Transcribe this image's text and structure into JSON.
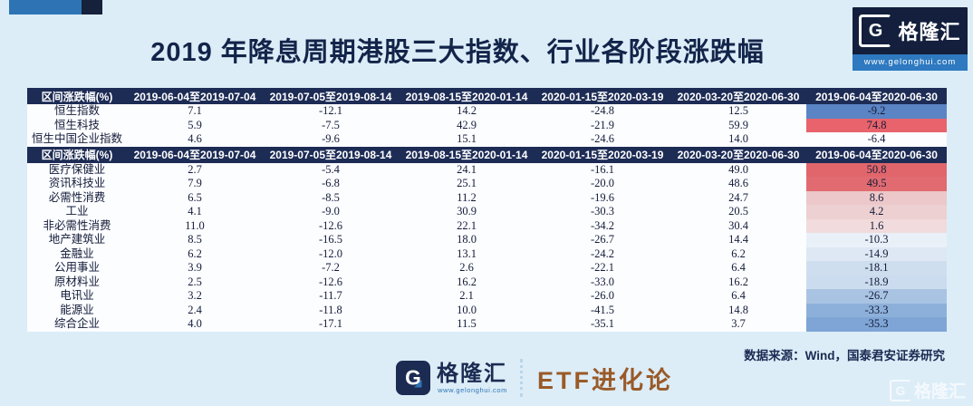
{
  "page": {
    "bg": "#dcedf8",
    "accent_blue": "#2e74b5",
    "accent_navy": "#16213c",
    "table_header_bg": "#1d2c55"
  },
  "title": "2019 年降息周期港股三大指数、行业各阶段涨跌幅",
  "top_logo": {
    "glyph": "G",
    "brand": "格隆汇",
    "url": "www.gelonghui.com"
  },
  "chart_data": {
    "type": "table",
    "title": "2019 年降息周期港股三大指数、行业各阶段涨跌幅",
    "columns": [
      "区间涨跌幅(%)",
      "2019-06-04至2019-07-04",
      "2019-07-05至2019-08-14",
      "2019-08-15至2020-01-14",
      "2020-01-15至2020-03-19",
      "2020-03-20至2020-06-30",
      "2019-06-04至2020-06-30"
    ],
    "tables": [
      {
        "name": "港股三大指数",
        "rows": [
          {
            "label": "恒生指数",
            "values": [
              "7.1",
              "-12.1",
              "14.2",
              "-24.8",
              "12.5",
              "-9.2"
            ],
            "last_bg": "#5b84c4"
          },
          {
            "label": "恒生科技",
            "values": [
              "5.9",
              "-7.5",
              "42.9",
              "-21.9",
              "59.9",
              "74.8"
            ],
            "last_bg": "#e8636c"
          },
          {
            "label": "恒生中国企业指数",
            "values": [
              "4.6",
              "-9.6",
              "15.1",
              "-24.6",
              "14.0",
              "-6.4"
            ],
            "last_bg": ""
          }
        ]
      },
      {
        "name": "行业",
        "rows": [
          {
            "label": "医疗保健业",
            "values": [
              "2.7",
              "-5.4",
              "24.1",
              "-16.1",
              "49.0",
              "50.8"
            ],
            "last_bg": "#e0666c"
          },
          {
            "label": "资讯科技业",
            "values": [
              "7.9",
              "-6.8",
              "25.1",
              "-20.0",
              "48.6",
              "49.5"
            ],
            "last_bg": "#e16b70"
          },
          {
            "label": "必需性消费",
            "values": [
              "6.5",
              "-8.5",
              "11.2",
              "-19.6",
              "24.7",
              "8.6"
            ],
            "last_bg": "#ecc8ca"
          },
          {
            "label": "工业",
            "values": [
              "4.1",
              "-9.0",
              "30.9",
              "-30.3",
              "20.5",
              "4.2"
            ],
            "last_bg": "#edd0d1"
          },
          {
            "label": "非必需性消费",
            "values": [
              "11.0",
              "-12.6",
              "22.1",
              "-34.2",
              "30.4",
              "1.6"
            ],
            "last_bg": "#f1dbdc"
          },
          {
            "label": "地产建筑业",
            "values": [
              "8.5",
              "-16.5",
              "18.0",
              "-26.7",
              "14.4",
              "-10.3"
            ],
            "last_bg": "#e9f0f8"
          },
          {
            "label": "金融业",
            "values": [
              "6.2",
              "-12.0",
              "13.1",
              "-24.2",
              "6.2",
              "-14.9"
            ],
            "last_bg": "#dde8f4"
          },
          {
            "label": "公用事业",
            "values": [
              "3.9",
              "-7.2",
              "2.6",
              "-22.1",
              "6.4",
              "-18.1"
            ],
            "last_bg": "#cedeef"
          },
          {
            "label": "原材料业",
            "values": [
              "2.5",
              "-12.6",
              "16.2",
              "-33.0",
              "16.2",
              "-18.9"
            ],
            "last_bg": "#cbdcee"
          },
          {
            "label": "电讯业",
            "values": [
              "3.2",
              "-11.7",
              "2.1",
              "-26.0",
              "6.4",
              "-26.7"
            ],
            "last_bg": "#a9c3e3"
          },
          {
            "label": "能源业",
            "values": [
              "2.4",
              "-11.8",
              "10.0",
              "-41.5",
              "14.8",
              "-33.3"
            ],
            "last_bg": "#8db0da"
          },
          {
            "label": "综合企业",
            "values": [
              "4.0",
              "-17.1",
              "11.5",
              "-35.1",
              "3.7",
              "-35.3"
            ],
            "last_bg": "#7ea5d5"
          }
        ]
      }
    ]
  },
  "footer": {
    "source": "数据来源：Wind，国泰君安证券研究",
    "brand": {
      "glyph": "G",
      "name": "格隆汇",
      "url": "www.gelonghui.com"
    },
    "program": "ETF进化论",
    "watermark_glyph": "G",
    "watermark": "格隆汇"
  }
}
